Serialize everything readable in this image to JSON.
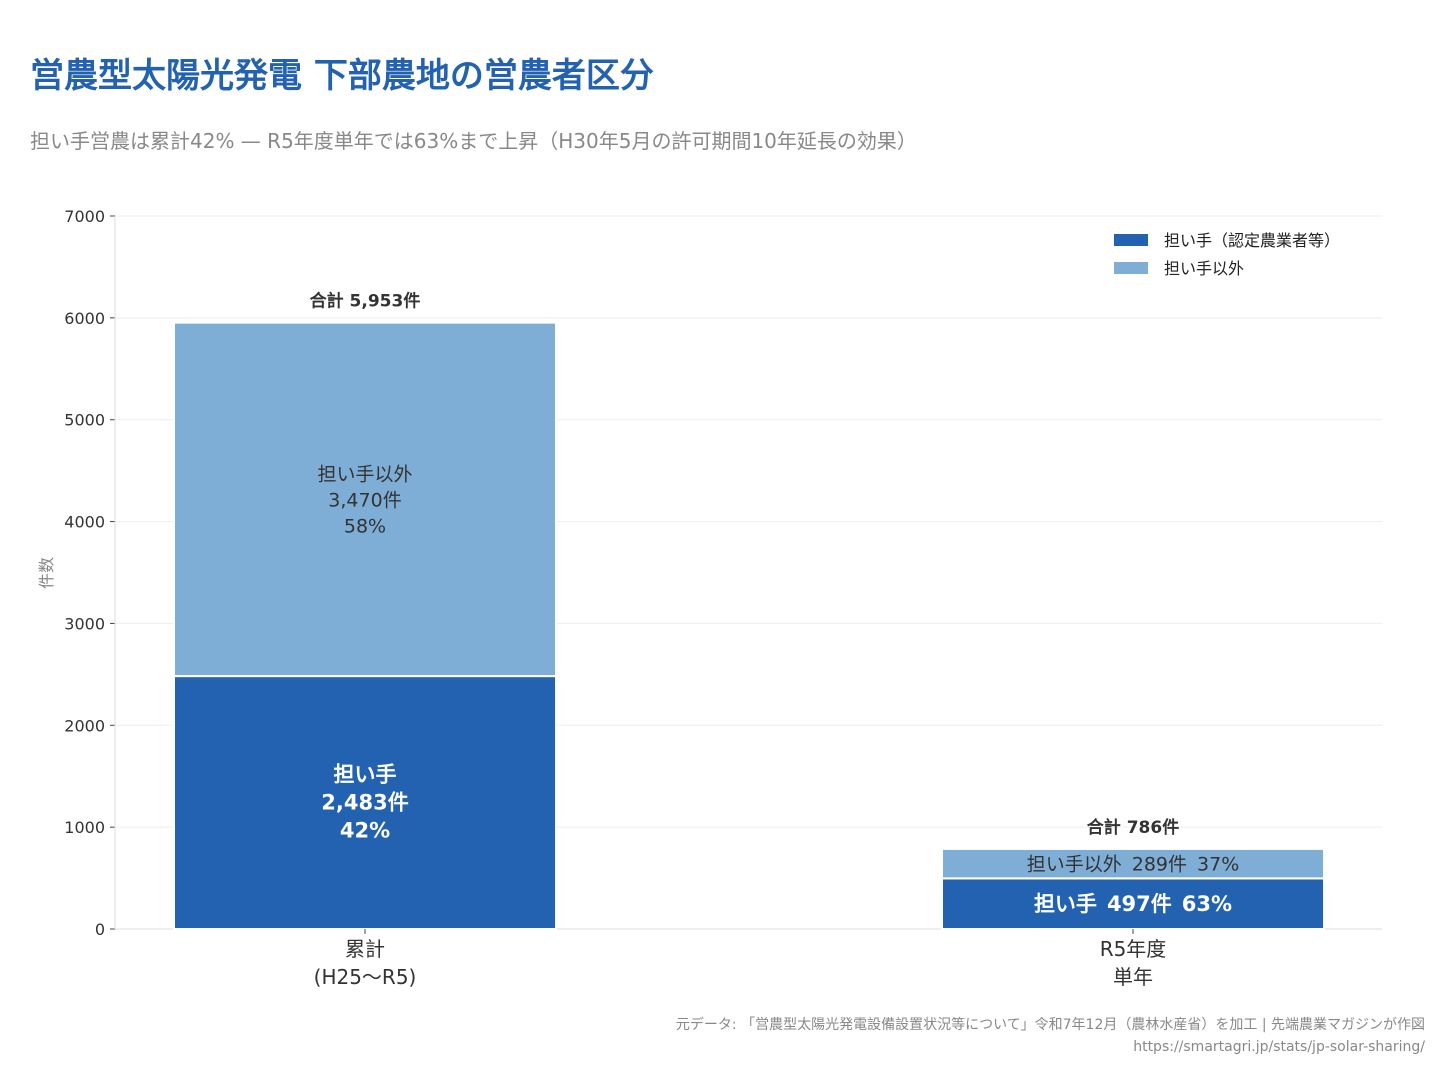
{
  "title": "営農型太陽光発電 下部農地の営農者区分",
  "subtitle": "担い手営農は累計42% — R5年度単年では63%まで上昇（H30年5月の許可期間10年延長の効果）",
  "footer": {
    "source": "元データ: 「営農型太陽光発電設備設置状況等について」令和7年12月（農林水産省）を加工 | 先端農業マガジンが作図",
    "url": "https://smartagri.jp/stats/jp-solar-sharing/"
  },
  "chart_data": {
    "type": "bar",
    "stacked": true,
    "ylabel": "件数",
    "ylim": [
      0,
      7000
    ],
    "yticks": [
      0,
      1000,
      2000,
      3000,
      4000,
      5000,
      6000,
      7000
    ],
    "grid": true,
    "legend_position": "top-right",
    "categories": [
      [
        "累計",
        "(H25〜R5)"
      ],
      [
        "R5年度",
        "単年"
      ]
    ],
    "series": [
      {
        "name": "担い手（認定農業者等）",
        "short": "担い手",
        "color": "#2362b0",
        "label_color": "#ffffff",
        "values": [
          2483,
          497
        ],
        "labels": [
          "2,483件",
          "497件"
        ],
        "percents": [
          "42%",
          "63%"
        ]
      },
      {
        "name": "担い手以外",
        "short": "担い手以外",
        "color": "#7eaed6",
        "label_color": "#333333",
        "values": [
          3470,
          289
        ],
        "labels": [
          "3,470件",
          "289件"
        ],
        "percents": [
          "58%",
          "37%"
        ]
      }
    ],
    "totals": [
      "合計 5,953件",
      "合計 786件"
    ]
  }
}
